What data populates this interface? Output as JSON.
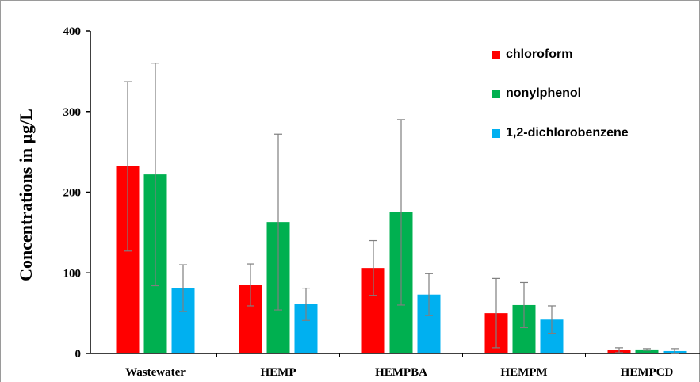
{
  "chart_data": {
    "type": "bar",
    "title": "",
    "xlabel": "",
    "ylabel": "Concentrations in μg/L",
    "ylim": [
      0,
      400
    ],
    "yticks": [
      0,
      100,
      200,
      300,
      400
    ],
    "categories": [
      "Wastewater",
      "HEMP",
      "HEMPBA",
      "HEMPM",
      "HEMPCD"
    ],
    "legend_position": "top-right",
    "grid": false,
    "series": [
      {
        "name": "chloroform",
        "color": "#ff0000",
        "values": [
          232,
          85,
          106,
          50,
          4
        ],
        "error": [
          105,
          26,
          34,
          43,
          3
        ]
      },
      {
        "name": "nonylphenol",
        "color": "#00b050",
        "values": [
          222,
          163,
          175,
          60,
          5
        ],
        "error": [
          138,
          109,
          115,
          28,
          1
        ]
      },
      {
        "name": "1,2-dichlorobenzene",
        "color": "#00b0f0",
        "values": [
          81,
          61,
          73,
          42,
          3
        ],
        "error": [
          29,
          20,
          26,
          17,
          3
        ]
      }
    ]
  }
}
